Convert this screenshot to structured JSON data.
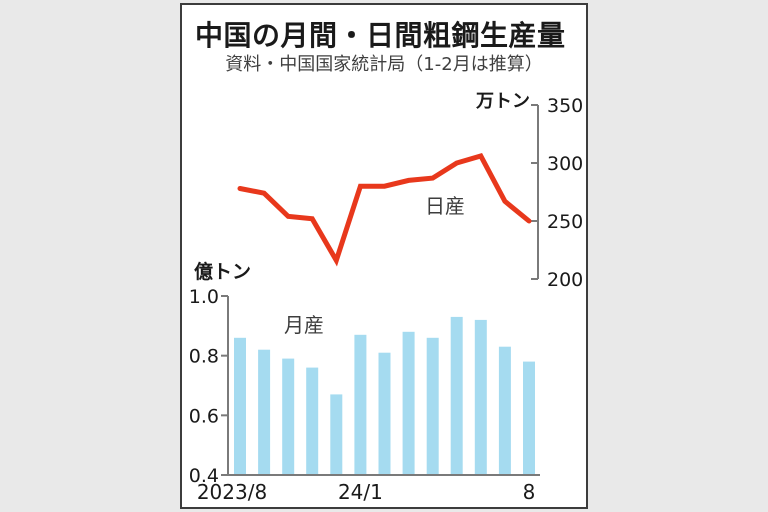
{
  "page": {
    "background_color": "#e9e9e9",
    "card_background": "#ffffff",
    "card_border_color": "#3c3c3c"
  },
  "header": {
    "title": "中国の月間・日間粗鋼生産量",
    "subtitle": "資料・中国国家統計局（1-2月は推算）"
  },
  "chart_data": [
    {
      "type": "line",
      "name": "daily-production",
      "series_label": "日産",
      "unit_label": "万トン",
      "color": "#e8381c",
      "axis_side": "right",
      "axis_color": "#7a7a7a",
      "text_color": "#1a1a1a",
      "categories": [
        "2023/8",
        "2023/9",
        "2023/10",
        "2023/11",
        "2023/12",
        "2024/1",
        "2024/2",
        "2024/3",
        "2024/4",
        "2024/5",
        "2024/6",
        "2024/7",
        "2024/8"
      ],
      "values": [
        278,
        274,
        254,
        252,
        216,
        280,
        280,
        285,
        287,
        300,
        306,
        267,
        250
      ],
      "ylim": [
        200,
        350
      ],
      "yticks": [
        {
          "value": 350,
          "label": "350"
        },
        {
          "value": 300,
          "label": "300"
        },
        {
          "value": 250,
          "label": "250"
        },
        {
          "value": 200,
          "label": "200"
        }
      ],
      "grid": false,
      "legend_position": "inline"
    },
    {
      "type": "bar",
      "name": "monthly-production",
      "series_label": "月産",
      "unit_label": "億トン",
      "color": "#a5dbf0",
      "axis_side": "left",
      "axis_color": "#7a7a7a",
      "text_color": "#1a1a1a",
      "categories": [
        "2023/8",
        "2023/9",
        "2023/10",
        "2023/11",
        "2023/12",
        "2024/1",
        "2024/2",
        "2024/3",
        "2024/4",
        "2024/5",
        "2024/6",
        "2024/7",
        "2024/8"
      ],
      "values": [
        0.86,
        0.82,
        0.79,
        0.76,
        0.67,
        0.87,
        0.81,
        0.88,
        0.86,
        0.93,
        0.92,
        0.83,
        0.78
      ],
      "ylim": [
        0.4,
        1.0
      ],
      "yticks": [
        {
          "value": 1.0,
          "label": "1.0"
        },
        {
          "value": 0.8,
          "label": "0.8"
        },
        {
          "value": 0.6,
          "label": "0.6"
        },
        {
          "value": 0.4,
          "label": "0.4"
        }
      ],
      "xticks": [
        {
          "index": 0,
          "label": "2023/8"
        },
        {
          "index": 5,
          "label": "24/1"
        },
        {
          "index": 12,
          "label": "8"
        }
      ],
      "grid": false,
      "legend_position": "inline"
    }
  ]
}
